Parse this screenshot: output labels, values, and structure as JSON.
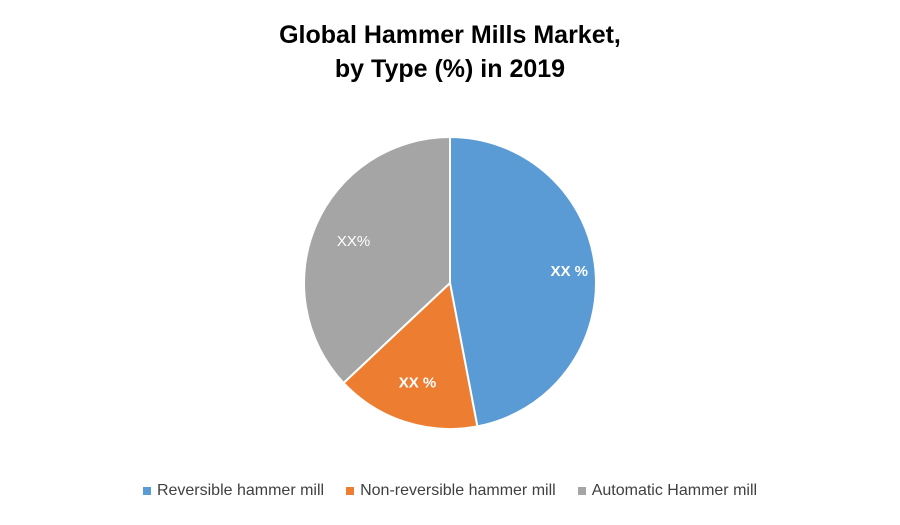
{
  "chart_data": {
    "type": "pie",
    "title_lines": [
      "Global Hammer Mills Market,",
      "by Type (%) in 2019"
    ],
    "categories": [
      "Reversible hammer mill",
      "Non-reversible hammer mill",
      "Automatic Hammer mill"
    ],
    "values": [
      47,
      16,
      37
    ],
    "data_labels": [
      "XX %",
      "XX %",
      "XX%"
    ],
    "colors": [
      "#5B9BD5",
      "#ED7D31",
      "#A5A5A5"
    ],
    "legend_position": "bottom",
    "start_angle_deg": 0,
    "direction": "clockwise"
  }
}
